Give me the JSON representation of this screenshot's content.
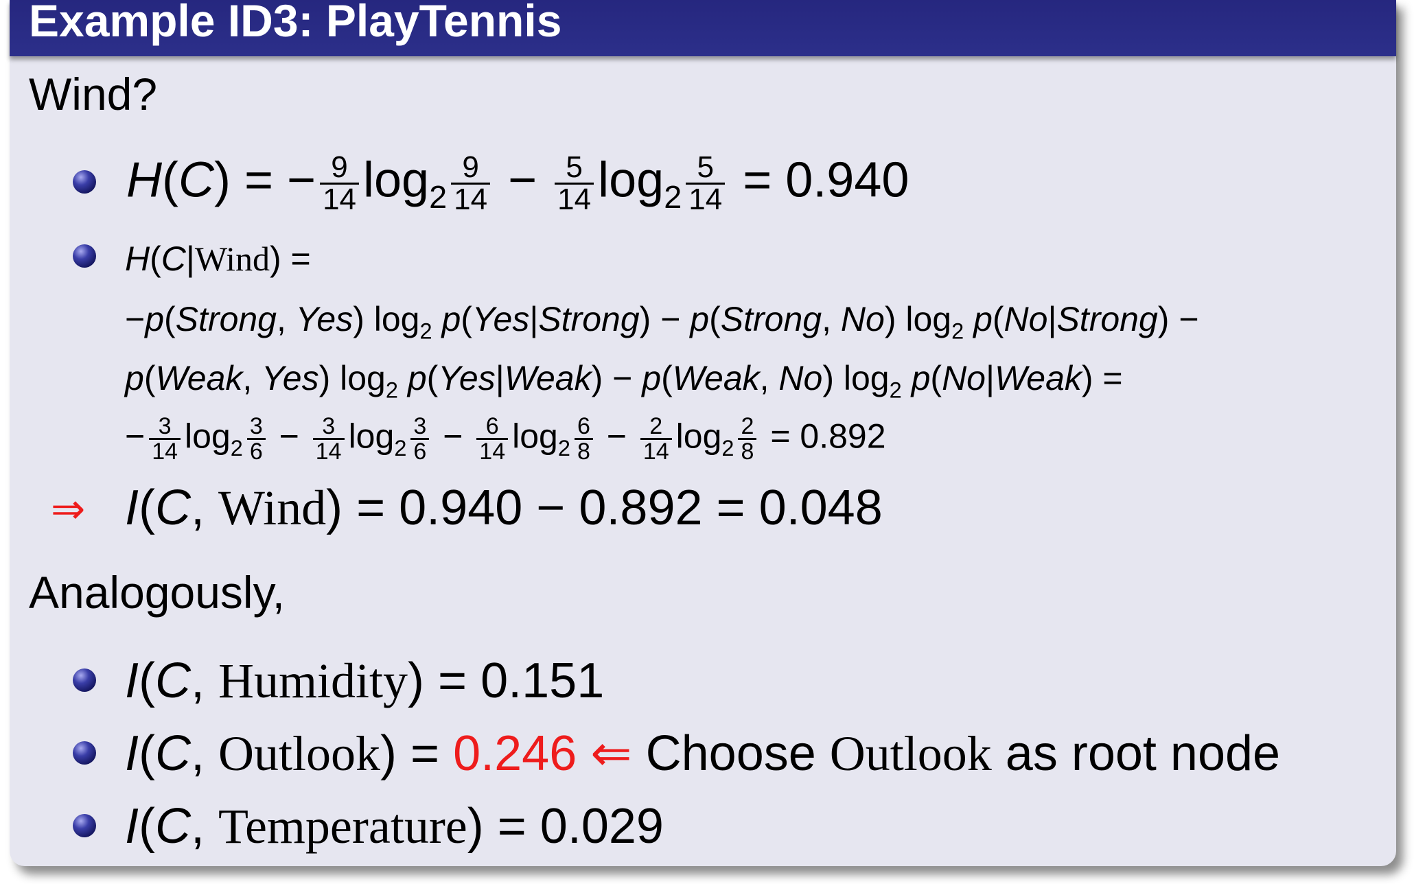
{
  "title": "Example ID3: PlayTennis",
  "wind_heading": "Wind?",
  "hc": {
    "lhs": "H(C) =",
    "f1n": "9",
    "f1d": "14",
    "f2n": "9",
    "f2d": "14",
    "f3n": "5",
    "f3d": "14",
    "f4n": "5",
    "f4d": "14",
    "result": "= 0.940"
  },
  "hcw": {
    "line1": "H(C|Wind) =",
    "line2": "−p(Strong, Yes) log₂ p(Yes|Strong) − p(Strong, No) log₂ p(No|Strong) −",
    "line3": "p(Weak, Yes) log₂ p(Yes|Weak) − p(Weak, No) log₂ p(No|Weak) =",
    "fracs": [
      [
        "3",
        "14"
      ],
      [
        "3",
        "6"
      ],
      [
        "3",
        "14"
      ],
      [
        "3",
        "6"
      ],
      [
        "6",
        "14"
      ],
      [
        "6",
        "8"
      ],
      [
        "2",
        "14"
      ],
      [
        "2",
        "8"
      ]
    ],
    "result": "= 0.892"
  },
  "result_line": "I(C, Wind) = 0.940 − 0.892 = 0.048",
  "implies_symbol": "⇒",
  "analogously": "Analogously,",
  "results": [
    {
      "attr": "Humidity",
      "value": "0.151"
    },
    {
      "attr": "Outlook",
      "value": "0.246",
      "note": "Choose Outlook as root node",
      "highlight_color": "#ee1c1c"
    },
    {
      "attr": "Temperature",
      "value": "0.029"
    }
  ],
  "colors": {
    "header": "#26277f",
    "background": "#e6e6f0",
    "highlight": "#ee1c1c"
  }
}
